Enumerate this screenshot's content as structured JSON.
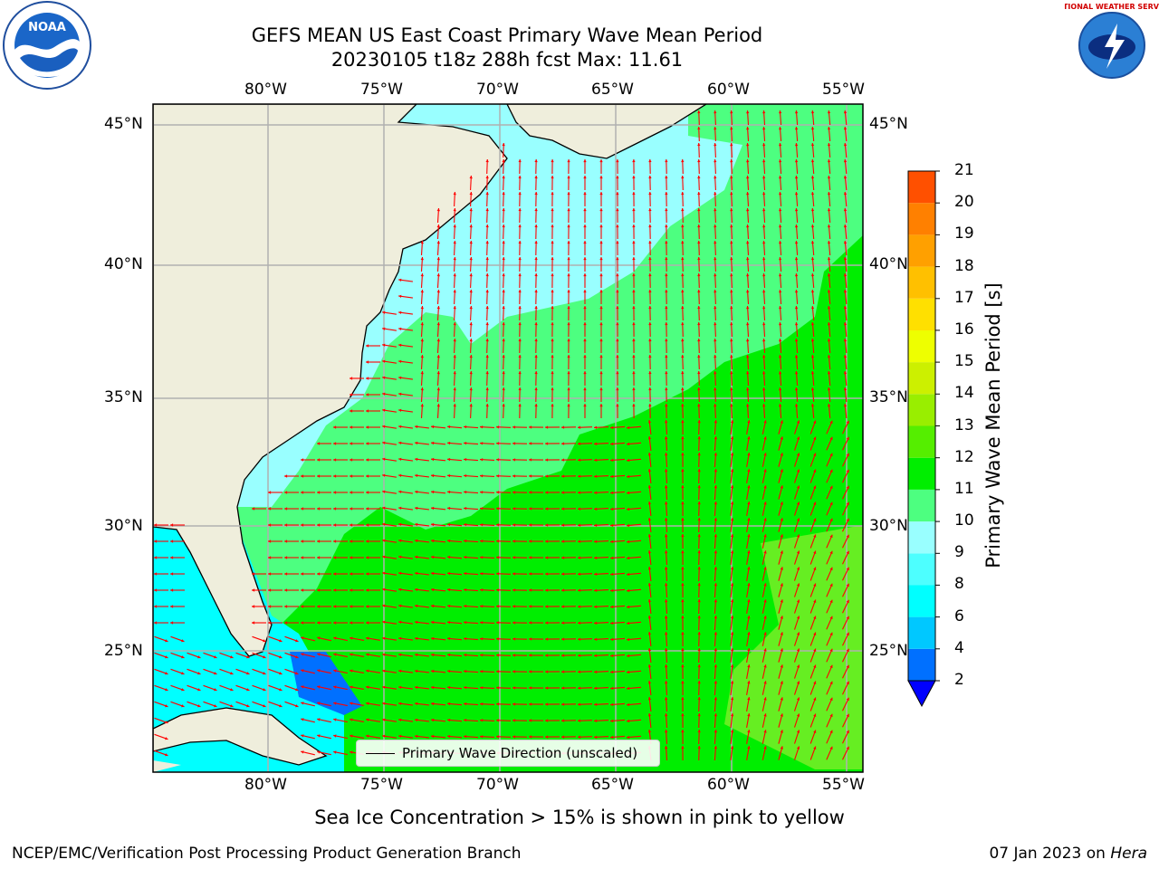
{
  "title_line1": "GEFS MEAN US East Coast Primary Wave Mean Period",
  "title_line2": "20230105 t18z 288h fcst   Max: 11.61",
  "lon_labels": [
    "80°W",
    "75°W",
    "70°W",
    "65°W",
    "60°W",
    "55°W"
  ],
  "lat_labels": [
    "45°N",
    "40°N",
    "35°N",
    "30°N",
    "25°N"
  ],
  "colorbar": {
    "title": "Primary Wave Mean Period [s]",
    "ticks": [
      "2",
      "4",
      "6",
      "8",
      "9",
      "10",
      "11",
      "12",
      "13",
      "14",
      "15",
      "16",
      "17",
      "18",
      "19",
      "20",
      "21"
    ],
    "colors": [
      "#0070ff",
      "#00c8ff",
      "#00ffff",
      "#4dffff",
      "#99ffff",
      "#4dff80",
      "#00ee00",
      "#55ee00",
      "#99ee00",
      "#ccf000",
      "#eeff00",
      "#ffe000",
      "#ffc000",
      "#ffa000",
      "#ff8000",
      "#ff5000",
      "#ff2000",
      "#ff0000"
    ],
    "under_color": "#0000ff"
  },
  "legend_label": "Primary Wave Direction (unscaled)",
  "caption": "Sea Ice Concentration > 15% is shown in pink to yellow",
  "footer_left": "NCEP/EMC/Verification Post Processing Product Generation Branch",
  "footer_date": "07 Jan 2023 on ",
  "footer_host": "Hera",
  "logo_left": "NOAA",
  "logo_right": "NATIONAL WEATHER SERVICE",
  "colors": {
    "land": "#efeedc",
    "coast": "#000000",
    "grid": "#b0b0b0",
    "arrow": "#ff0000",
    "period_low": "#99ffff",
    "period_mid": "#4dff80",
    "period_high": "#00ee00"
  }
}
